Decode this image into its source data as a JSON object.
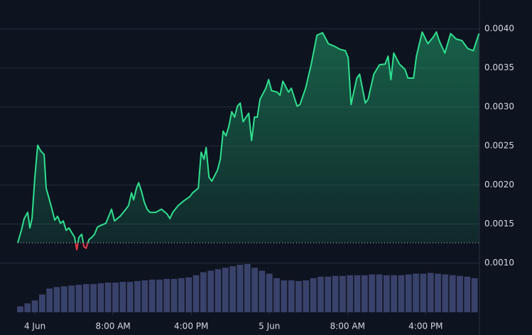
{
  "chart_data": {
    "type": "line",
    "x": [
      -1.75,
      -1.38,
      -1.09,
      -0.73,
      -0.51,
      -0.29,
      0,
      0.29,
      0.58,
      0.95,
      1.16,
      1.45,
      1.75,
      2.04,
      2.33,
      2.62,
      2.91,
      3.2,
      3.49,
      3.78,
      4.07,
      4.29,
      4.51,
      4.8,
      5.02,
      5.24,
      5.53,
      5.82,
      6.11,
      6.4,
      6.69,
      7.27,
      7.56,
      7.85,
      8.15,
      8.73,
      9.31,
      9.6,
      9.89,
      10.11,
      10.4,
      10.62,
      10.91,
      11.2,
      11.49,
      11.78,
      12.36,
      12.95,
      13.53,
      13.82,
      14.11,
      14.69,
      15.27,
      15.85,
      16.15,
      16.73,
      17.02,
      17.31,
      17.53,
      17.82,
      18.11,
      18.69,
      18.98,
      19.27,
      19.56,
      19.85,
      20.15,
      20.44,
      20.73,
      21.02,
      21.31,
      21.89,
      22.18,
      22.47,
      22.76,
      23.05,
      23.64,
      23.93,
      24.22,
      24.8,
      25.09,
      25.38,
      25.96,
      26.25,
      26.84,
      27.13,
      27.71,
      28.29,
      28.87,
      29.45,
      30.04,
      30.62,
      31.2,
      31.78,
      32.07,
      32.36,
      32.95,
      33.24,
      33.82,
      34.11,
      34.69,
      35.27,
      35.85,
      36.15,
      36.44,
      36.73,
      37.31,
      37.89,
      38.18,
      38.76,
      39.05,
      39.64,
      40.22,
      40.8,
      41.09,
      41.38,
      41.96,
      42.55,
      43.13,
      43.71,
      44.29,
      44.87,
      45.45
    ],
    "series": [
      {
        "color": "#2ee08e",
        "below_color": "#e5394a",
        "values": [
          0.00126,
          0.00142,
          0.00157,
          0.00165,
          0.00145,
          0.00157,
          0.0021,
          0.00251,
          0.00244,
          0.00239,
          0.00196,
          0.00183,
          0.00169,
          0.00155,
          0.0016,
          0.00151,
          0.00154,
          0.00142,
          0.00145,
          0.00139,
          0.00133,
          0.00117,
          0.00133,
          0.00137,
          0.00121,
          0.00119,
          0.0013,
          0.00133,
          0.00137,
          0.00146,
          0.00148,
          0.00151,
          0.0016,
          0.00169,
          0.00154,
          0.0016,
          0.00169,
          0.00174,
          0.0019,
          0.00181,
          0.00196,
          0.00203,
          0.00192,
          0.00178,
          0.00169,
          0.00165,
          0.00165,
          0.00169,
          0.00163,
          0.00157,
          0.00165,
          0.00174,
          0.0018,
          0.00185,
          0.0019,
          0.00196,
          0.00242,
          0.00233,
          0.00248,
          0.0021,
          0.00205,
          0.00219,
          0.00233,
          0.00269,
          0.00263,
          0.00275,
          0.00294,
          0.00287,
          0.00301,
          0.00305,
          0.00281,
          0.00292,
          0.00257,
          0.00287,
          0.00287,
          0.0031,
          0.00324,
          0.00335,
          0.00321,
          0.00319,
          0.00315,
          0.00333,
          0.00319,
          0.00324,
          0.00301,
          0.00303,
          0.00324,
          0.00355,
          0.00392,
          0.00395,
          0.00381,
          0.00378,
          0.00374,
          0.00372,
          0.00363,
          0.00303,
          0.00337,
          0.00342,
          0.00305,
          0.0031,
          0.00342,
          0.00354,
          0.00355,
          0.00365,
          0.00335,
          0.00369,
          0.00355,
          0.00348,
          0.00337,
          0.00337,
          0.00365,
          0.00396,
          0.00381,
          0.0039,
          0.00396,
          0.00385,
          0.00369,
          0.00394,
          0.00387,
          0.00385,
          0.00375,
          0.00372,
          0.00394
        ]
      }
    ],
    "baseline": 0.00126,
    "volume": {
      "color": "#39426a",
      "x": [
        -1.5,
        -0.75,
        0,
        0.75,
        1.5,
        2.25,
        3,
        3.75,
        4.5,
        5.25,
        6,
        6.75,
        7.5,
        8.25,
        9,
        9.75,
        10.5,
        11.25,
        12,
        12.75,
        13.5,
        14.25,
        15,
        15.75,
        16.5,
        17.25,
        18,
        18.75,
        19.5,
        20.25,
        21,
        21.75,
        22.5,
        23.25,
        24,
        24.75,
        25.5,
        26.25,
        27,
        27.75,
        28.5,
        29.25,
        30,
        30.75,
        31.5,
        32.25,
        33,
        33.75,
        34.5,
        35.25,
        36,
        36.75,
        37.5,
        38.25,
        39,
        39.75,
        40.5,
        41.25,
        42,
        42.75,
        43.5,
        44.25,
        45
      ],
      "values": [
        8,
        12,
        16,
        24,
        32,
        34,
        35,
        36,
        37,
        38,
        38,
        39,
        40,
        40,
        41,
        41,
        42,
        43,
        44,
        44,
        45,
        45,
        46,
        47,
        50,
        54,
        56,
        58,
        60,
        62,
        64,
        65,
        60,
        56,
        52,
        46,
        43,
        43,
        42,
        43,
        46,
        48,
        48,
        49,
        49,
        50,
        50,
        50,
        51,
        51,
        50,
        50,
        50,
        51,
        52,
        52,
        53,
        52,
        51,
        50,
        49,
        48,
        46
      ]
    },
    "xlim": [
      -1.75,
      45.5
    ],
    "xticks": [
      {
        "value": 0,
        "label": "4 Jun"
      },
      {
        "value": 8,
        "label": "8:00 AM"
      },
      {
        "value": 16,
        "label": "4:00 PM"
      },
      {
        "value": 24,
        "label": "5 Jun"
      },
      {
        "value": 32,
        "label": "8:00 AM"
      },
      {
        "value": 40,
        "label": "4:00 PM"
      }
    ],
    "ylim": [
      0.00037,
      0.00437
    ],
    "yticks": [
      {
        "value": 0.001,
        "label": "0.0010"
      },
      {
        "value": 0.0015,
        "label": "0.0015"
      },
      {
        "value": 0.002,
        "label": "0.0020"
      },
      {
        "value": 0.0025,
        "label": "0.0025"
      },
      {
        "value": 0.003,
        "label": "0.0030"
      },
      {
        "value": 0.0035,
        "label": "0.0035"
      },
      {
        "value": 0.004,
        "label": "0.0040"
      }
    ],
    "grid": true
  }
}
